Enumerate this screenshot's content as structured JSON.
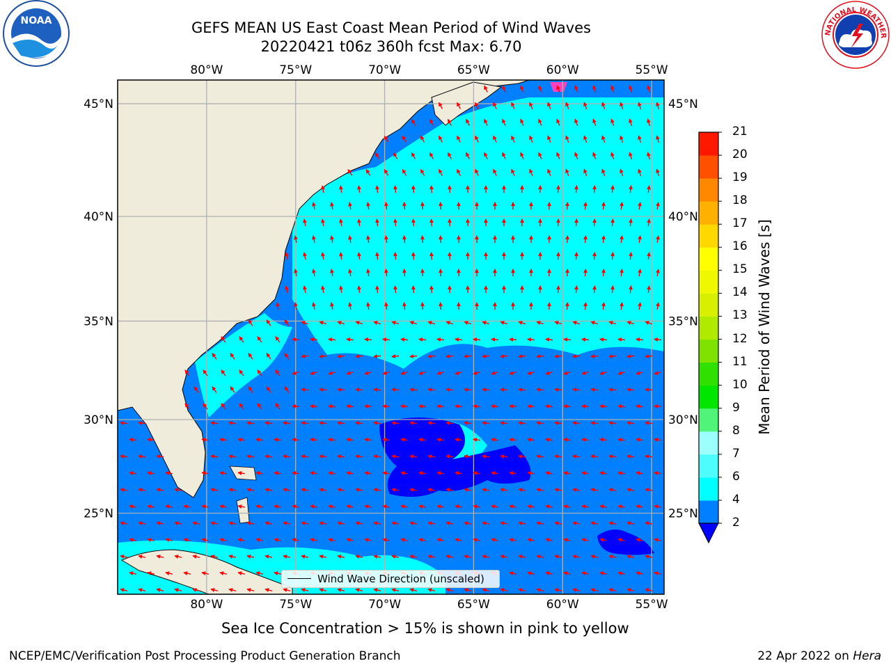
{
  "title": {
    "line1": "GEFS MEAN US East Coast Mean Period of Wind Waves",
    "line2": "20220421 t06z 360h fcst   Max: 6.70"
  },
  "logos": {
    "left": {
      "icon": "noaa-logo-icon",
      "text": "NOAA"
    },
    "right": {
      "icon": "nws-logo-icon",
      "text": "NATIONAL WEATHER SERVICE"
    }
  },
  "map": {
    "lon_labels": [
      "80°W",
      "75°W",
      "70°W",
      "65°W",
      "60°W",
      "55°W"
    ],
    "lat_labels": [
      "45°N",
      "40°N",
      "35°N",
      "30°N",
      "25°N"
    ],
    "lon_values": [
      -80,
      -75,
      -70,
      -65,
      -60,
      -55
    ],
    "lat_values": [
      45,
      40,
      35,
      30,
      25
    ],
    "extent": {
      "lon_min": -85,
      "lon_max": -54.3,
      "lat_min": 20.5,
      "lat_max": 46
    },
    "colors": {
      "land": "#efecdc",
      "grid": "#b0b0b0",
      "arrow": "#ff0000",
      "coast": "#000000"
    }
  },
  "legend": {
    "label": "Wind Wave Direction (unscaled)"
  },
  "colorbar": {
    "label": "Mean Period of Wind Waves [s]",
    "ticks": [
      "2",
      "4",
      "6",
      "7",
      "8",
      "9",
      "10",
      "11",
      "12",
      "13",
      "14",
      "15",
      "16",
      "17",
      "18",
      "19",
      "20",
      "21"
    ],
    "colors": [
      "#0080ff",
      "#00ffff",
      "#4dfcfc",
      "#9cfffb",
      "#50f478",
      "#00e600",
      "#30e000",
      "#7fe200",
      "#b0ea00",
      "#d8f000",
      "#f0f800",
      "#ffff00",
      "#ffd800",
      "#ffb000",
      "#ff8800",
      "#ff5000",
      "#ff1800",
      "#ff0000"
    ],
    "extend_color": "#0000ff"
  },
  "caption": "Sea Ice Concentration > 15% is shown in pink to yellow",
  "footer": {
    "left": "NCEP/EMC/Verification Post Processing Product Generation Branch",
    "date": "22 Apr 2022 on ",
    "machine": "Hera"
  }
}
